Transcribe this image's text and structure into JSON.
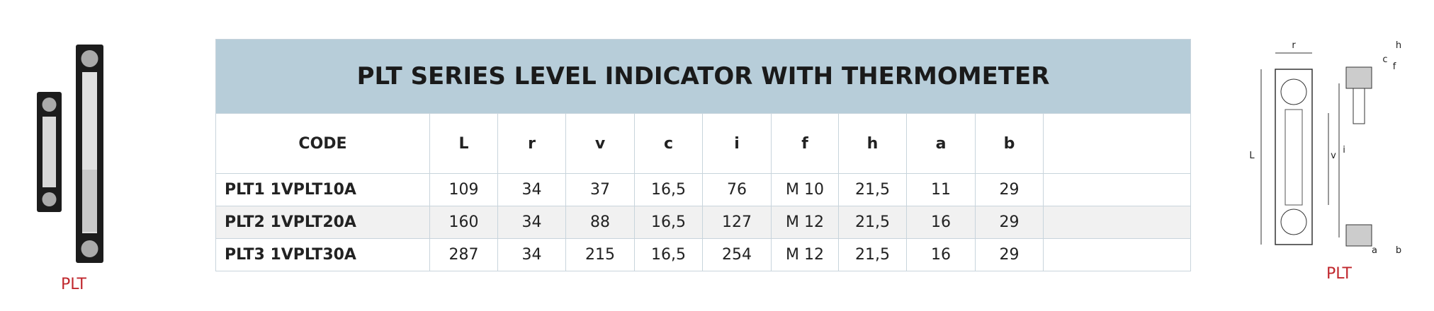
{
  "left_image": {
    "caption": "PLT"
  },
  "table": {
    "title": "PLT SERIES LEVEL INDICATOR WITH THERMOMETER",
    "columns": [
      "CODE",
      "L",
      "r",
      "v",
      "c",
      "i",
      "f",
      "h",
      "a",
      "b"
    ],
    "rows": [
      [
        "PLT1 1VPLT10A",
        "109",
        "34",
        "37",
        "16,5",
        "76",
        "M 10",
        "21,5",
        "11",
        "29"
      ],
      [
        "PLT2 1VPLT20A",
        "160",
        "34",
        "88",
        "16,5",
        "127",
        "M 12",
        "21,5",
        "16",
        "29"
      ],
      [
        "PLT3 1VPLT30A",
        "287",
        "34",
        "215",
        "16,5",
        "254",
        "M 12",
        "21,5",
        "16",
        "29"
      ]
    ]
  },
  "right_image": {
    "caption": "PLT",
    "labels": [
      "r",
      "h",
      "L",
      "v",
      "i",
      "c",
      "f",
      "a",
      "b"
    ]
  }
}
